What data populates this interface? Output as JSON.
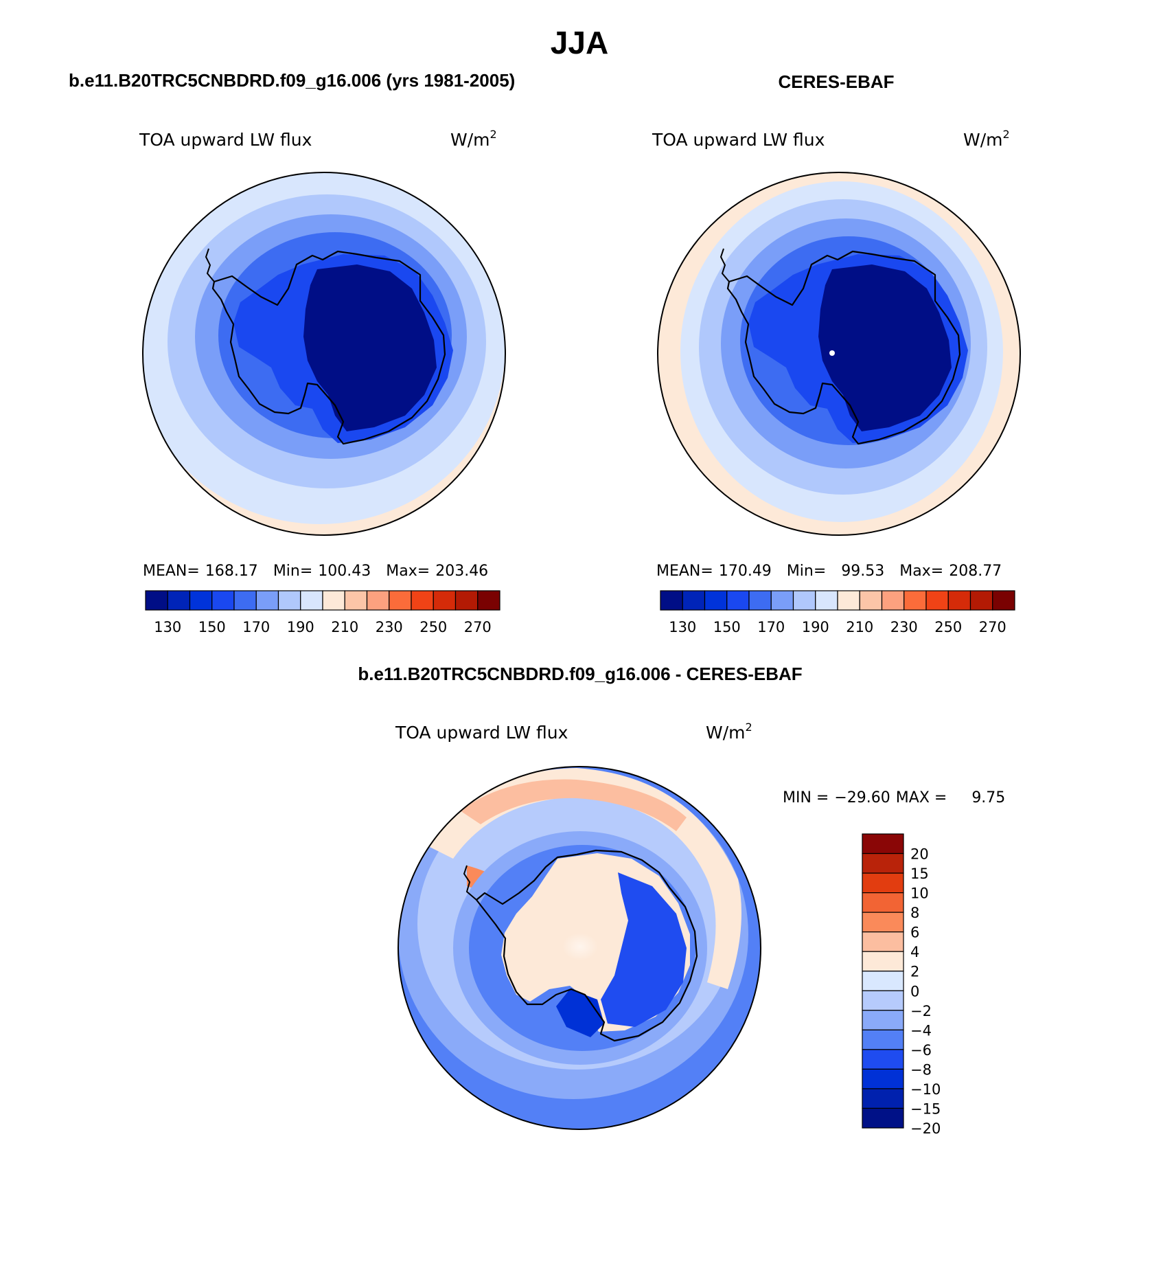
{
  "figure": {
    "season": "JJA",
    "top_left_title": "b.e11.B20TRC5CNBDRD.f09_g16.006 (yrs 1981-2005)",
    "top_right_title": "CERES-EBAF",
    "bottom_title": "b.e11.B20TRC5CNBDRD.f09_g16.006 - CERES-EBAF"
  },
  "colors": {
    "abs_levels": [
      "#000e86",
      "#0024b8",
      "#0033da",
      "#1a48f0",
      "#3d6cf2",
      "#7a9ef8",
      "#b0c8fc",
      "#d8e6fd",
      "#fde9d8",
      "#fcc5a8",
      "#fca17f",
      "#fb6c3a",
      "#f04316",
      "#d52b09",
      "#b31a04",
      "#7a0202"
    ],
    "diff_levels": [
      "#001187",
      "#0021ae",
      "#0031d6",
      "#1f4cf0",
      "#5380f6",
      "#8aaaf9",
      "#b6cbfc",
      "#d9e8fe",
      "#fde9d8",
      "#fcbea0",
      "#fa8a5a",
      "#f26434",
      "#e23d10",
      "#b9230a",
      "#8a0606"
    ]
  },
  "chart_data": [
    {
      "type": "heatmap",
      "projection": "south polar stereographic",
      "variable": "TOA upward LW flux",
      "units": "W/m",
      "units_exp": "2",
      "stats": {
        "mean_label": "MEAN=",
        "mean": "168.17",
        "min_label": "Min=",
        "min": "100.43",
        "max_label": "Max=",
        "max": "203.46"
      },
      "colorbar": {
        "levels": [
          120,
          130,
          140,
          150,
          160,
          170,
          180,
          190,
          200,
          210,
          220,
          230,
          240,
          250,
          260,
          270,
          280
        ],
        "tick_labels": [
          "130",
          "150",
          "170",
          "190",
          "210",
          "230",
          "250",
          "270"
        ]
      },
      "regions": {
        "antarctic_interior": 105,
        "coast": 140,
        "southern_ocean_inner": 160,
        "southern_ocean_outer": 180,
        "midlatitudes": 195
      }
    },
    {
      "type": "heatmap",
      "projection": "south polar stereographic",
      "variable": "TOA upward LW flux",
      "units": "W/m",
      "units_exp": "2",
      "stats": {
        "mean_label": "MEAN=",
        "mean": "170.49",
        "min_label": "Min=",
        "min": "99.53",
        "max_label": "Max=",
        "max": "208.77"
      },
      "colorbar": {
        "levels": [
          120,
          130,
          140,
          150,
          160,
          170,
          180,
          190,
          200,
          210,
          220,
          230,
          240,
          250,
          260,
          270,
          280
        ],
        "tick_labels": [
          "130",
          "150",
          "170",
          "190",
          "210",
          "230",
          "250",
          "270"
        ]
      },
      "regions": {
        "antarctic_interior": 102,
        "coast": 140,
        "southern_ocean_inner": 165,
        "southern_ocean_outer": 185,
        "midlatitudes": 205
      }
    },
    {
      "type": "heatmap",
      "projection": "south polar stereographic",
      "variable": "TOA upward LW flux",
      "units": "W/m",
      "units_exp": "2",
      "stats": {
        "min_label": "MIN =",
        "min": "−29.60",
        "max_label": "MAX =",
        "max": "9.75"
      },
      "colorbar": {
        "tick_labels": [
          "20",
          "15",
          "10",
          "8",
          "6",
          "4",
          "2",
          "0",
          "−2",
          "−4",
          "−6",
          "−8",
          "−10",
          "−15",
          "−20"
        ]
      }
    }
  ]
}
